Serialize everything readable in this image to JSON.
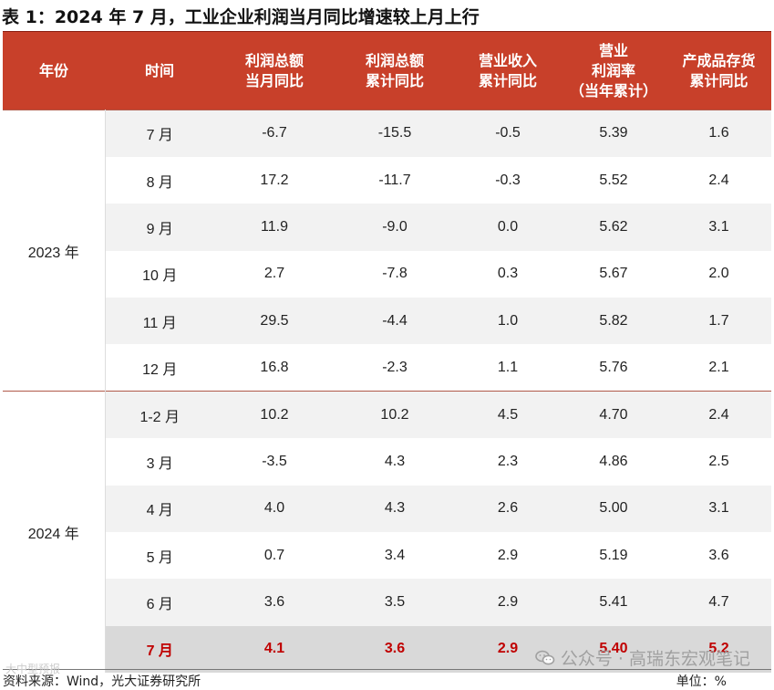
{
  "title": "表 1：2024 年 7 月，工业企业利润当月同比增速较上月上行",
  "headers": [
    [
      "年份"
    ],
    [
      "时间"
    ],
    [
      "利润总额",
      "当月同比"
    ],
    [
      "利润总额",
      "累计同比"
    ],
    [
      "营业收入",
      "累计同比"
    ],
    [
      "营业",
      "利润率",
      "（当年累计）"
    ],
    [
      "产成品存货",
      "累计同比"
    ]
  ],
  "groups": [
    {
      "year": "2023 年",
      "rows": [
        [
          "7 月",
          "-6.7",
          "-15.5",
          "-0.5",
          "5.39",
          "1.6"
        ],
        [
          "8 月",
          "17.2",
          "-11.7",
          "-0.3",
          "5.52",
          "2.4"
        ],
        [
          "9 月",
          "11.9",
          "-9.0",
          "0.0",
          "5.62",
          "3.1"
        ],
        [
          "10 月",
          "2.7",
          "-7.8",
          "0.3",
          "5.67",
          "2.0"
        ],
        [
          "11 月",
          "29.5",
          "-4.4",
          "1.0",
          "5.82",
          "1.7"
        ],
        [
          "12 月",
          "16.8",
          "-2.3",
          "1.1",
          "5.76",
          "2.1"
        ]
      ]
    },
    {
      "year": "2024 年",
      "rows": [
        [
          "1-2 月",
          "10.2",
          "10.2",
          "4.5",
          "4.70",
          "2.4"
        ],
        [
          "3 月",
          "-3.5",
          "4.3",
          "2.3",
          "4.86",
          "2.5"
        ],
        [
          "4 月",
          "4.0",
          "4.3",
          "2.6",
          "5.00",
          "3.1"
        ],
        [
          "5 月",
          "0.7",
          "3.4",
          "2.9",
          "5.19",
          "3.6"
        ],
        [
          "6 月",
          "3.6",
          "3.5",
          "2.9",
          "5.41",
          "4.7"
        ],
        [
          "7 月",
          "4.1",
          "3.6",
          "2.9",
          "5.40",
          "5.2"
        ]
      ]
    }
  ],
  "footer": {
    "source": "资料来源：Wind，光大证券研究所",
    "unit": "单位：%"
  },
  "watermark": {
    "text": "公众号 · 高瑞东宏观笔记",
    "left_text": "大中型预报"
  },
  "colors": {
    "header_bg": "#c8402a",
    "highlight_text": "#c00000",
    "zebra": "#f2f2f2",
    "highlight_bg": "#d9d9d9"
  }
}
